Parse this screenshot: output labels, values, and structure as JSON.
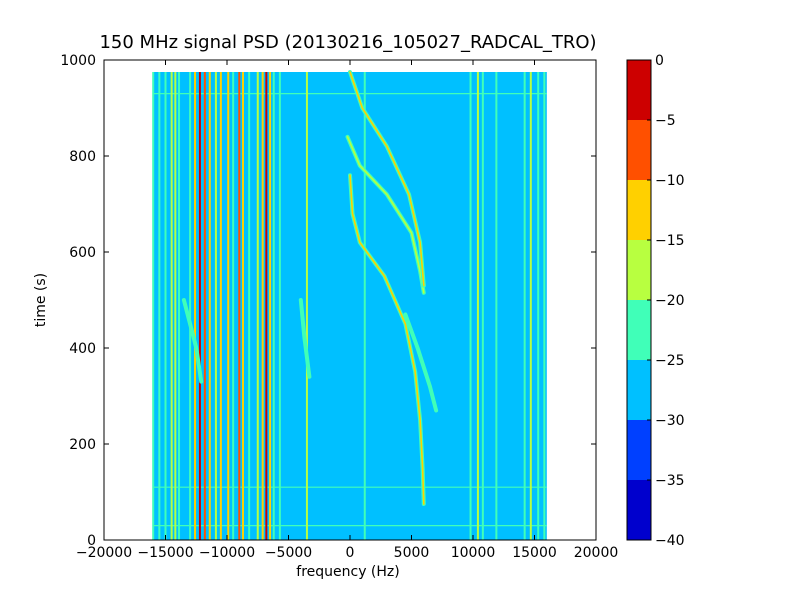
{
  "chart_data": {
    "type": "heatmap",
    "title": "150 MHz signal PSD (20130216_105027_RADCAL_TRO)",
    "xlabel": "frequency (Hz)",
    "ylabel": "time (s)",
    "xlim": [
      -20000,
      20000
    ],
    "ylim": [
      0,
      1000
    ],
    "data_extent": {
      "x": [
        -16000,
        16000
      ],
      "y": [
        0,
        975
      ]
    },
    "x_ticks": [
      -20000,
      -15000,
      -10000,
      -5000,
      0,
      5000,
      10000,
      15000,
      20000
    ],
    "y_ticks": [
      0,
      200,
      400,
      600,
      800,
      1000
    ],
    "background_level": -27.5,
    "colorbar": {
      "label": "",
      "range": [
        -40,
        0
      ],
      "ticks": [
        0,
        -5,
        -10,
        -15,
        -20,
        -25,
        -30,
        -35,
        -40
      ],
      "levels": [
        {
          "from": -40,
          "to": -35,
          "color": "#0000cd"
        },
        {
          "from": -35,
          "to": -30,
          "color": "#0040ff"
        },
        {
          "from": -30,
          "to": -25,
          "color": "#00c0ff"
        },
        {
          "from": -25,
          "to": -20,
          "color": "#40ffb8"
        },
        {
          "from": -20,
          "to": -15,
          "color": "#b8ff40"
        },
        {
          "from": -15,
          "to": -10,
          "color": "#ffd000"
        },
        {
          "from": -10,
          "to": -5,
          "color": "#ff5000"
        },
        {
          "from": -5,
          "to": 0,
          "color": "#cd0000"
        }
      ]
    },
    "vertical_lines": [
      {
        "freq": -16000,
        "level": -22
      },
      {
        "freq": -15500,
        "level": -22
      },
      {
        "freq": -15000,
        "level": -22
      },
      {
        "freq": -14500,
        "level": -17
      },
      {
        "freq": -14200,
        "level": -17
      },
      {
        "freq": -13900,
        "level": -22
      },
      {
        "freq": -13000,
        "level": -22
      },
      {
        "freq": -12600,
        "level": -12
      },
      {
        "freq": -12200,
        "level": -2
      },
      {
        "freq": -11800,
        "level": -7
      },
      {
        "freq": -11400,
        "level": -12
      },
      {
        "freq": -10900,
        "level": -17
      },
      {
        "freq": -10500,
        "level": -12
      },
      {
        "freq": -9900,
        "level": -12
      },
      {
        "freq": -9500,
        "level": -22
      },
      {
        "freq": -9000,
        "level": -7
      },
      {
        "freq": -8700,
        "level": -12
      },
      {
        "freq": -8200,
        "level": -22
      },
      {
        "freq": -7500,
        "level": -17
      },
      {
        "freq": -7100,
        "level": -12
      },
      {
        "freq": -6800,
        "level": -2
      },
      {
        "freq": -6500,
        "level": -12
      },
      {
        "freq": -6200,
        "level": -22
      },
      {
        "freq": -5700,
        "level": -22
      },
      {
        "freq": -3500,
        "level": -17
      },
      {
        "freq": 1200,
        "level": -22
      },
      {
        "freq": 9800,
        "level": -22
      },
      {
        "freq": 10400,
        "level": -17
      },
      {
        "freq": 10800,
        "level": -22
      },
      {
        "freq": 11900,
        "level": -22
      },
      {
        "freq": 14200,
        "level": -22
      },
      {
        "freq": 14700,
        "level": -17
      },
      {
        "freq": 15300,
        "level": -22
      },
      {
        "freq": 15800,
        "level": -22
      }
    ],
    "horizontal_lines": [
      {
        "time": 30,
        "level": -22
      },
      {
        "time": 110,
        "level": -22
      },
      {
        "time": 930,
        "level": -22
      }
    ],
    "tracks": [
      {
        "level": -12,
        "points": [
          [
            6000,
            75
          ],
          [
            5900,
            150
          ],
          [
            5700,
            250
          ],
          [
            5300,
            350
          ],
          [
            4500,
            450
          ],
          [
            2800,
            550
          ],
          [
            800,
            620
          ],
          [
            200,
            680
          ],
          [
            0,
            760
          ]
        ]
      },
      {
        "level": -17,
        "points": [
          [
            6000,
            515
          ],
          [
            5700,
            560
          ],
          [
            5000,
            640
          ],
          [
            3000,
            720
          ],
          [
            800,
            780
          ],
          [
            -200,
            840
          ]
        ]
      },
      {
        "level": -12,
        "points": [
          [
            0,
            975
          ],
          [
            1000,
            900
          ],
          [
            3000,
            820
          ],
          [
            4800,
            720
          ],
          [
            5700,
            620
          ],
          [
            6000,
            530
          ]
        ]
      },
      {
        "level": -22,
        "points": [
          [
            7000,
            270
          ],
          [
            6500,
            320
          ],
          [
            5500,
            400
          ],
          [
            4500,
            470
          ]
        ]
      },
      {
        "level": -22,
        "points": [
          [
            -13500,
            500
          ],
          [
            -13000,
            450
          ],
          [
            -12500,
            400
          ],
          [
            -12100,
            330
          ]
        ]
      },
      {
        "level": -22,
        "points": [
          [
            -4000,
            500
          ],
          [
            -3700,
            420
          ],
          [
            -3300,
            340
          ]
        ]
      }
    ]
  }
}
